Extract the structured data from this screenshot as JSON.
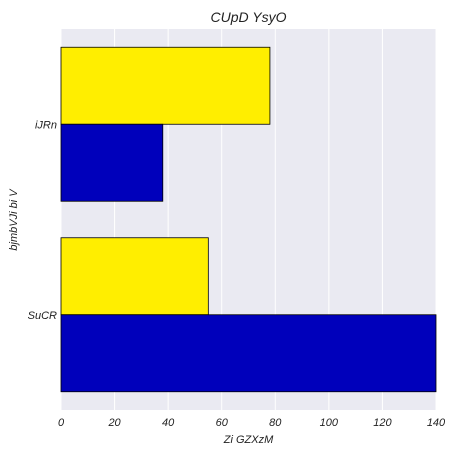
{
  "chart_data": {
    "type": "bar",
    "orientation": "horizontal",
    "title": "CUpD  YsyO",
    "xlabel": "Zi GZXzM",
    "ylabel": "bjmbVJi  bi V",
    "categories": [
      "iJRn",
      "SuCR"
    ],
    "series": [
      {
        "color": "#ffee00",
        "values": [
          78,
          55
        ]
      },
      {
        "color": "#0000bb",
        "values": [
          38,
          140
        ]
      }
    ],
    "xlim": [
      0,
      140
    ],
    "xticks": [
      0,
      20,
      40,
      60,
      80,
      100,
      120,
      140
    ],
    "grid": true,
    "background_color": "#eaeaf2",
    "edge_color": "#000000"
  }
}
